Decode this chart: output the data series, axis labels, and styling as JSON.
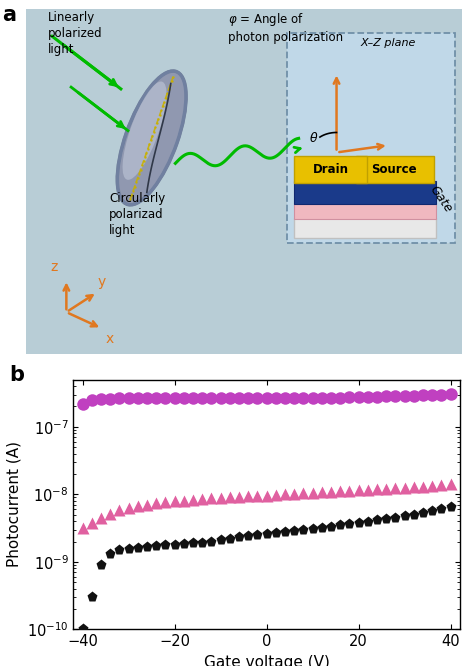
{
  "panel_a_bg_color": "#b8cdd6",
  "gate_voltages": [
    -40,
    -38,
    -36,
    -34,
    -32,
    -30,
    -28,
    -26,
    -24,
    -22,
    -20,
    -18,
    -16,
    -14,
    -12,
    -10,
    -8,
    -6,
    -4,
    -2,
    0,
    2,
    4,
    6,
    8,
    10,
    12,
    14,
    16,
    18,
    20,
    22,
    24,
    26,
    28,
    30,
    32,
    34,
    36,
    38,
    40
  ],
  "purple_circles": [
    2.2e-07,
    2.5e-07,
    2.6e-07,
    2.6e-07,
    2.65e-07,
    2.65e-07,
    2.65e-07,
    2.65e-07,
    2.65e-07,
    2.65e-07,
    2.65e-07,
    2.65e-07,
    2.65e-07,
    2.65e-07,
    2.65e-07,
    2.65e-07,
    2.65e-07,
    2.65e-07,
    2.65e-07,
    2.65e-07,
    2.65e-07,
    2.65e-07,
    2.65e-07,
    2.65e-07,
    2.65e-07,
    2.65e-07,
    2.65e-07,
    2.65e-07,
    2.7e-07,
    2.75e-07,
    2.75e-07,
    2.8e-07,
    2.8e-07,
    2.85e-07,
    2.85e-07,
    2.9e-07,
    2.9e-07,
    2.95e-07,
    3e-07,
    3e-07,
    3.05e-07
  ],
  "pink_triangles": [
    3.2e-09,
    3.8e-09,
    4.5e-09,
    5.2e-09,
    5.8e-09,
    6.2e-09,
    6.8e-09,
    7e-09,
    7.4e-09,
    7.7e-09,
    7.9e-09,
    8.1e-09,
    8.3e-09,
    8.5e-09,
    8.7e-09,
    8.8e-09,
    9e-09,
    9.1e-09,
    9.3e-09,
    9.5e-09,
    9.6e-09,
    9.8e-09,
    1e-08,
    1.01e-08,
    1.03e-08,
    1.05e-08,
    1.07e-08,
    1.09e-08,
    1.11e-08,
    1.13e-08,
    1.15e-08,
    1.17e-08,
    1.19e-08,
    1.21e-08,
    1.23e-08,
    1.25e-08,
    1.27e-08,
    1.3e-08,
    1.33e-08,
    1.36e-08,
    1.4e-08
  ],
  "black_pentagons": [
    1e-10,
    3e-10,
    9e-10,
    1.3e-09,
    1.5e-09,
    1.55e-09,
    1.6e-09,
    1.65e-09,
    1.7e-09,
    1.75e-09,
    1.8e-09,
    1.85e-09,
    1.9e-09,
    1.9e-09,
    2e-09,
    2.1e-09,
    2.2e-09,
    2.3e-09,
    2.4e-09,
    2.5e-09,
    2.6e-09,
    2.7e-09,
    2.8e-09,
    2.9e-09,
    3e-09,
    3.1e-09,
    3.2e-09,
    3.3e-09,
    3.5e-09,
    3.6e-09,
    3.8e-09,
    3.9e-09,
    4.1e-09,
    4.3e-09,
    4.5e-09,
    4.7e-09,
    5e-09,
    5.3e-09,
    5.6e-09,
    6e-09,
    6.5e-09
  ],
  "purple_color": "#c040c0",
  "pink_color": "#e060a0",
  "black_color": "#111111",
  "ylabel": "Photocurrent (A)",
  "xlabel": "Gate voltage (V)",
  "label_a": "a",
  "label_b": "b",
  "ylim_min": 1e-10,
  "ylim_max": 5e-07,
  "xlim_min": -42,
  "xlim_max": 42,
  "xticks": [
    -40,
    -20,
    0,
    20,
    40
  ],
  "marker_size_circle": 9,
  "marker_size_triangle": 9,
  "marker_size_pentagon": 8,
  "orange_color": "#e07820",
  "green_color": "#00bb00",
  "source_color": "#e8c000",
  "drain_color": "#e8c000",
  "device_bg": "#c0d8e8",
  "channel_color": "#1a3a8a",
  "substrate_color": "#f0c0c8",
  "white_substrate": "#f0f0f0",
  "disk_face": "#9098b0",
  "disk_edge": "#505870"
}
